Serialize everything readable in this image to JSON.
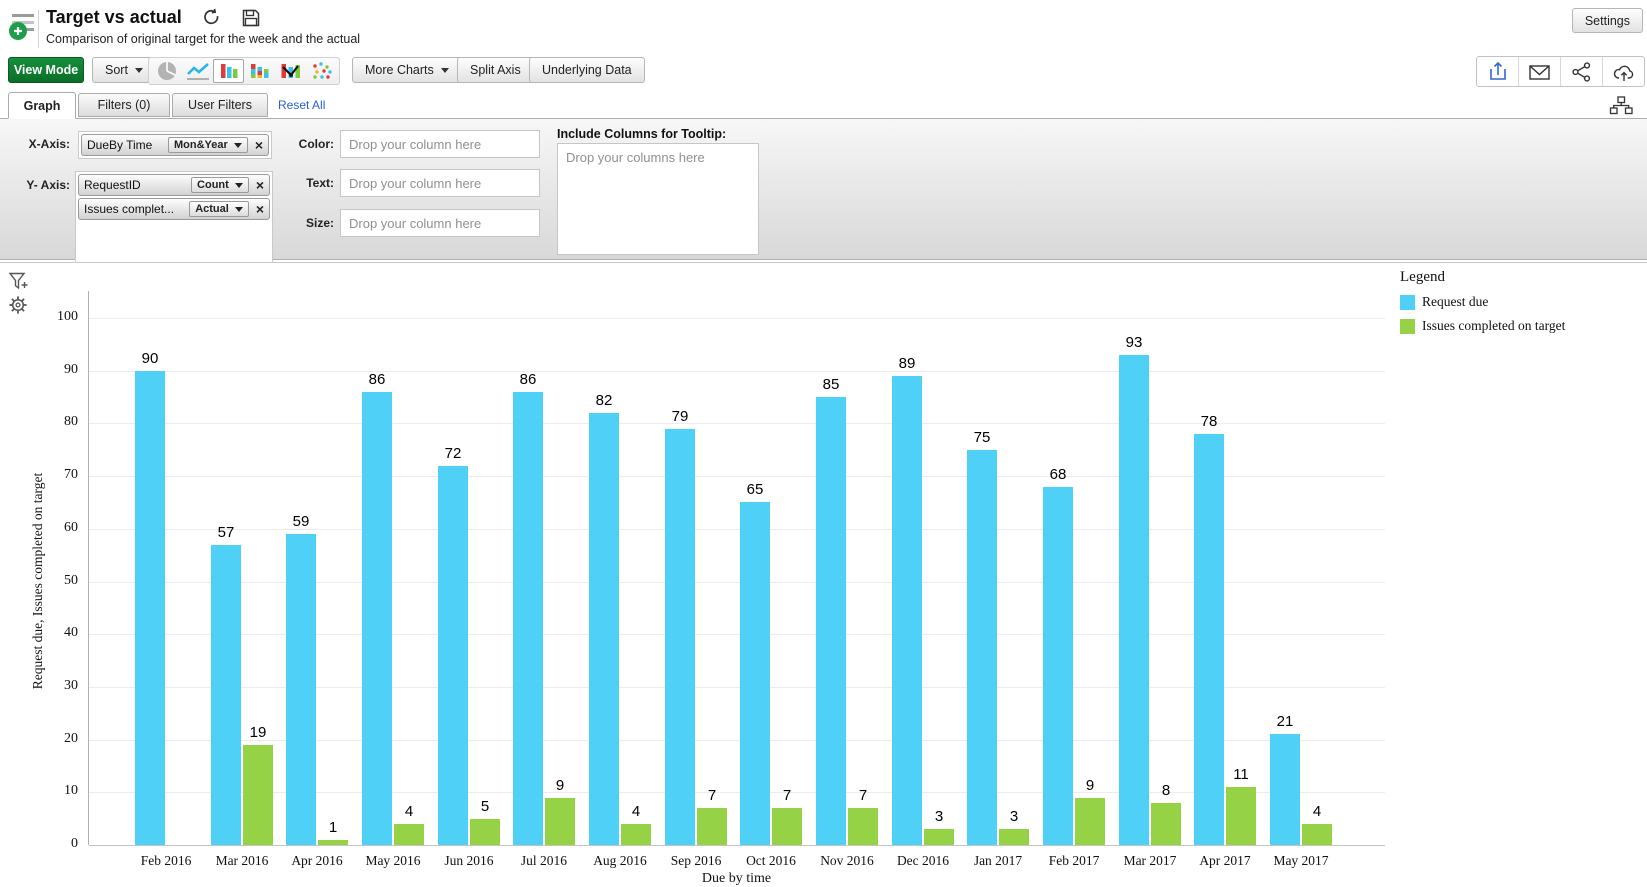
{
  "header": {
    "title": "Target vs actual",
    "subtitle": "Comparison of original target for the week and the actual",
    "settings": "Settings"
  },
  "toolbar": {
    "view_mode": "View Mode",
    "sort": "Sort",
    "more_charts": "More Charts",
    "split_axis": "Split Axis",
    "underlying_data": "Underlying Data"
  },
  "tabs": {
    "graph": "Graph",
    "filters": "Filters (0)",
    "user_filters": "User Filters",
    "reset_all": "Reset All"
  },
  "config": {
    "x_axis_label": "X-Axis:",
    "y_axis_label": "Y- Axis:",
    "x_field": {
      "name": "DueBy Time",
      "agg": "Mon&Year"
    },
    "y_fields": [
      {
        "name": "RequestID",
        "agg": "Count"
      },
      {
        "name": "Issues complet...",
        "agg": "Actual"
      }
    ],
    "color_label": "Color:",
    "text_label": "Text:",
    "size_label": "Size:",
    "drop_placeholder": "Drop your column here",
    "tooltip_label": "Include Columns for Tooltip:",
    "tooltip_placeholder": "Drop your columns here"
  },
  "chart_data": {
    "type": "bar",
    "categories": [
      "Feb 2016",
      "Mar 2016",
      "Apr 2016",
      "May 2016",
      "Jun 2016",
      "Jul 2016",
      "Aug 2016",
      "Sep 2016",
      "Oct 2016",
      "Nov 2016",
      "Dec 2016",
      "Jan 2017",
      "Feb 2017",
      "Mar 2017",
      "Apr 2017",
      "May 2017"
    ],
    "series": [
      {
        "name": "Request due",
        "color": "#4FD0F7",
        "values": [
          90,
          57,
          59,
          86,
          72,
          86,
          82,
          79,
          65,
          85,
          89,
          75,
          68,
          93,
          78,
          21
        ]
      },
      {
        "name": "Issues completed on target",
        "color": "#96D245",
        "values": [
          null,
          19,
          1,
          4,
          5,
          9,
          4,
          7,
          7,
          7,
          3,
          3,
          9,
          8,
          11,
          4
        ]
      }
    ],
    "xlabel": "Due by time",
    "ylabel": "Request due, Issues completed on target",
    "ylim": [
      0,
      100
    ],
    "ytick_step": 10,
    "grid": "horizontal",
    "legend_title": "Legend",
    "legend_position": "right",
    "bar_value_labels": true
  },
  "colors": {
    "bar_blue": "#4FD0F7",
    "bar_green": "#96D245",
    "view_mode_green": "#0E7F2C",
    "link_blue": "#2A5FD0",
    "export_icon_blue": "#3464D6"
  },
  "icons": {
    "report_list_add": "list lines with green plus circle",
    "refresh": "circular arrow",
    "save": "floppy disk",
    "chart_types": [
      "pie",
      "line",
      "bar",
      "stacked-bar",
      "bar-line",
      "scatter"
    ],
    "export": "tray with up arrow",
    "email": "envelope",
    "share": "share nodes",
    "publish": "cloud with up arrow",
    "sitemap": "hierarchy boxes",
    "filter_add": "funnel with plus",
    "chart_settings": "gear"
  }
}
